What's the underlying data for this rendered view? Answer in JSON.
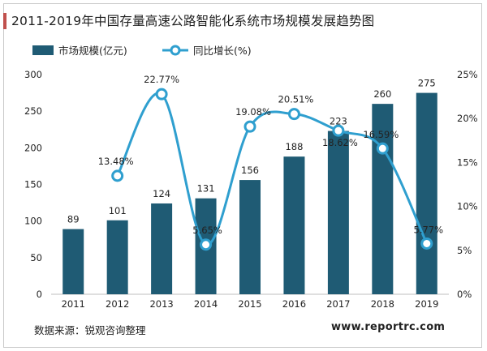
{
  "title": "2011-2019年中国存量高速公路智能化系统市场规模发展趋势图",
  "source": "数据来源：锐观咨询整理",
  "website": "www.reportrc.com",
  "colors": {
    "bar": "#1f5b74",
    "line": "#2f9fcf",
    "title_accent": "#c0504d"
  },
  "chart_data": {
    "type": "bar",
    "categories": [
      "2011",
      "2012",
      "2013",
      "2014",
      "2015",
      "2016",
      "2017",
      "2018",
      "2019"
    ],
    "series": [
      {
        "name": "市场规模(亿元)",
        "type": "bar",
        "axis": "left",
        "values": [
          89,
          101,
          124,
          131,
          156,
          188,
          223,
          260,
          275
        ],
        "labels": [
          "89",
          "101",
          "124",
          "131",
          "156",
          "188",
          "223",
          "260",
          "275"
        ]
      },
      {
        "name": "同比增长(%)",
        "type": "line",
        "axis": "right",
        "smooth": true,
        "values": [
          null,
          13.48,
          22.77,
          5.65,
          19.08,
          20.51,
          18.62,
          16.59,
          5.77
        ],
        "labels": [
          null,
          "13.48%",
          "22.77%",
          "5.65%",
          "19.08%",
          "20.51%",
          "18.62%",
          "16.59%",
          "5.77%"
        ]
      }
    ],
    "y_left": {
      "min": 0,
      "max": 300,
      "ticks": [
        "0",
        "50",
        "100",
        "150",
        "200",
        "250",
        "300"
      ]
    },
    "y_right": {
      "min": 0,
      "max": 25,
      "ticks": [
        "0%",
        "5%",
        "10%",
        "15%",
        "20%",
        "25%"
      ]
    },
    "legend_position": "top-left",
    "grid": false
  }
}
